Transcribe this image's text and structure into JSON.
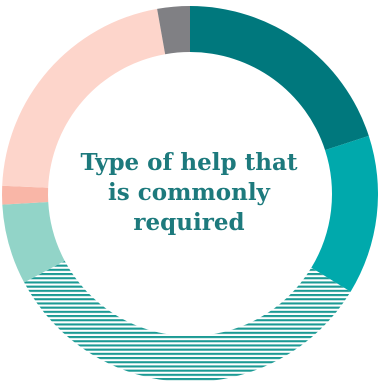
{
  "chart_data": {
    "type": "pie",
    "title_lines": [
      "Type of help that",
      "is commonly",
      "required"
    ],
    "slices": [
      {
        "value": 20.0,
        "color": "#00787d",
        "pattern": "solid"
      },
      {
        "value": 13.7,
        "color": "#00a9ac",
        "pattern": "solid"
      },
      {
        "value": 33.5,
        "color": "#1b9a94",
        "pattern": "stripes"
      },
      {
        "value": 6.9,
        "color": "#92d4c8",
        "pattern": "solid"
      },
      {
        "value": 1.6,
        "color": "#f9b6a7",
        "pattern": "solid"
      },
      {
        "value": 21.5,
        "color": "#fdd5cb",
        "pattern": "solid"
      },
      {
        "value": 2.8,
        "color": "#808084",
        "pattern": "solid"
      }
    ]
  }
}
